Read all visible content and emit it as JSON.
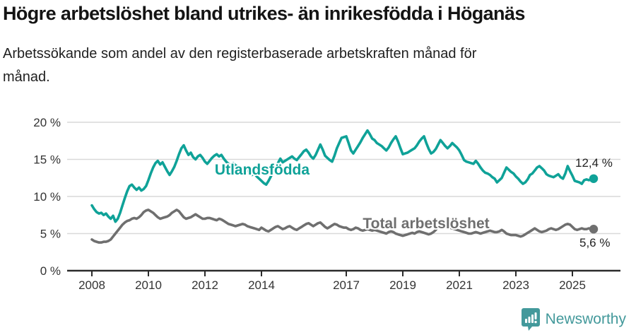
{
  "header": {
    "title": "Högre arbetslöshet bland utrikes- än inrikesfödda i Höganäs",
    "subtitle_line1": "Arbetssökande som andel av den registerbaserade arbetskraften månad för",
    "subtitle_line2": "månad."
  },
  "chart_data": {
    "type": "line",
    "title": "Högre arbetslöshet bland utrikes- än inrikesfödda i Höganäs",
    "subtitle": "Arbetssökande som andel av den registerbaserade arbetskraften månad för månad.",
    "x_unit": "month",
    "x_range": {
      "start": "2008-01",
      "end": "2025-10"
    },
    "grid": true,
    "legend_position": "inline-labels",
    "y_axis": {
      "tick_labels": [
        "0 %",
        "5 %",
        "10 %",
        "15 %",
        "20 %"
      ],
      "tick_values": [
        0,
        5,
        10,
        15,
        20
      ],
      "ylim": [
        0,
        20
      ]
    },
    "x_axis": {
      "tick_labels": [
        "2008",
        "2010",
        "2012",
        "2014",
        "2017",
        "2019",
        "2021",
        "2023",
        "2025"
      ],
      "tick_values": [
        2008,
        2010,
        2012,
        2014,
        2017,
        2019,
        2021,
        2023,
        2025
      ]
    },
    "series": [
      {
        "name": "Utlandsfödda",
        "color": "#0fa298",
        "end_value_label": "12,4 %",
        "values": [
          8.8,
          8.3,
          7.9,
          7.7,
          7.8,
          7.5,
          7.7,
          7.3,
          7.0,
          7.4,
          6.6,
          7.0,
          7.8,
          8.8,
          9.8,
          10.7,
          11.4,
          11.6,
          11.2,
          10.9,
          11.2,
          10.8,
          11.0,
          11.4,
          12.2,
          13.1,
          13.9,
          14.5,
          14.8,
          14.3,
          14.6,
          14.0,
          13.4,
          12.9,
          13.4,
          14.0,
          14.8,
          15.7,
          16.5,
          16.9,
          16.2,
          15.6,
          15.9,
          15.3,
          15.0,
          15.4,
          15.6,
          15.2,
          14.7,
          14.4,
          14.8,
          15.2,
          15.5,
          15.7,
          15.4,
          15.6,
          15.1,
          14.7,
          14.4,
          14.2,
          14.5,
          14.2,
          14.0,
          13.8,
          13.5,
          13.3,
          13.7,
          13.1,
          12.9,
          13.1,
          12.7,
          12.4,
          12.1,
          11.8,
          11.6,
          12.1,
          12.7,
          13.3,
          13.9,
          14.5,
          15.1,
          14.6,
          14.8,
          15.0,
          15.2,
          15.4,
          15.1,
          14.9,
          15.3,
          15.7,
          16.1,
          16.3,
          15.9,
          15.4,
          15.1,
          15.6,
          16.3,
          17.0,
          16.3,
          15.5,
          15.2,
          14.9,
          14.7,
          15.5,
          16.5,
          17.2,
          17.9,
          18.0,
          18.1,
          17.2,
          16.2,
          15.8,
          16.3,
          16.8,
          17.3,
          17.9,
          18.4,
          18.9,
          18.4,
          17.8,
          17.6,
          17.2,
          17.0,
          16.8,
          16.5,
          16.2,
          16.6,
          17.2,
          17.7,
          18.1,
          17.4,
          16.5,
          15.7,
          15.8,
          15.9,
          16.1,
          16.3,
          16.5,
          16.9,
          17.4,
          17.8,
          18.1,
          17.2,
          16.4,
          15.8,
          16.0,
          16.4,
          17.0,
          17.6,
          17.2,
          16.8,
          16.5,
          16.8,
          17.2,
          16.9,
          16.6,
          16.2,
          15.6,
          14.9,
          14.7,
          14.6,
          14.5,
          14.4,
          14.8,
          14.4,
          13.9,
          13.5,
          13.2,
          13.1,
          12.9,
          12.6,
          12.4,
          11.9,
          12.2,
          12.5,
          13.2,
          13.9,
          13.6,
          13.3,
          13.1,
          12.7,
          12.4,
          12.0,
          11.7,
          11.9,
          12.3,
          12.9,
          13.1,
          13.5,
          13.9,
          14.1,
          13.8,
          13.5,
          13.0,
          12.8,
          12.7,
          12.6,
          12.8,
          13.0,
          12.6,
          12.4,
          13.1,
          14.1,
          13.4,
          12.8,
          12.1,
          12.0,
          11.9,
          11.7,
          12.2,
          12.3,
          12.2,
          12.3,
          12.4
        ]
      },
      {
        "name": "Total arbetslöshet",
        "color": "#6f6f6f",
        "end_value_label": "5,6 %",
        "values": [
          4.2,
          4.0,
          3.9,
          3.8,
          3.8,
          3.9,
          3.9,
          4.0,
          4.2,
          4.6,
          5.0,
          5.4,
          5.8,
          6.2,
          6.5,
          6.7,
          6.8,
          7.0,
          7.1,
          7.0,
          7.2,
          7.5,
          7.9,
          8.1,
          8.2,
          8.0,
          7.8,
          7.5,
          7.2,
          7.0,
          7.1,
          7.2,
          7.3,
          7.5,
          7.8,
          8.0,
          8.2,
          8.0,
          7.6,
          7.2,
          7.0,
          7.1,
          7.2,
          7.4,
          7.6,
          7.4,
          7.2,
          7.0,
          7.0,
          7.1,
          7.1,
          7.0,
          6.9,
          6.8,
          7.0,
          6.9,
          6.7,
          6.5,
          6.3,
          6.2,
          6.1,
          6.0,
          6.1,
          6.2,
          6.3,
          6.2,
          6.0,
          5.9,
          5.8,
          5.7,
          5.6,
          5.5,
          5.8,
          5.6,
          5.4,
          5.3,
          5.5,
          5.7,
          5.9,
          6.0,
          5.8,
          5.6,
          5.7,
          5.9,
          6.0,
          5.8,
          5.6,
          5.5,
          5.7,
          5.9,
          6.1,
          6.3,
          6.4,
          6.2,
          6.0,
          6.2,
          6.4,
          6.5,
          6.2,
          5.9,
          5.7,
          5.9,
          6.1,
          6.3,
          6.2,
          6.0,
          5.9,
          5.8,
          5.8,
          5.6,
          5.5,
          5.6,
          5.8,
          5.7,
          5.5,
          5.4,
          5.5,
          5.6,
          5.5,
          5.4,
          5.5,
          5.4,
          5.3,
          5.2,
          5.1,
          5.0,
          5.2,
          5.3,
          5.2,
          5.0,
          4.9,
          4.8,
          4.7,
          4.8,
          4.9,
          5.0,
          5.1,
          5.0,
          5.2,
          5.3,
          5.2,
          5.1,
          5.0,
          4.9,
          5.0,
          5.2,
          5.5,
          6.0,
          6.3,
          6.2,
          6.0,
          5.9,
          5.8,
          5.7,
          5.6,
          5.5,
          5.4,
          5.3,
          5.2,
          5.1,
          5.0,
          5.0,
          5.1,
          5.2,
          5.1,
          5.0,
          5.1,
          5.2,
          5.3,
          5.4,
          5.3,
          5.2,
          5.2,
          5.3,
          5.5,
          5.3,
          5.0,
          4.9,
          4.8,
          4.8,
          4.8,
          4.7,
          4.6,
          4.7,
          4.9,
          5.1,
          5.3,
          5.5,
          5.7,
          5.5,
          5.3,
          5.2,
          5.3,
          5.4,
          5.6,
          5.7,
          5.6,
          5.5,
          5.6,
          5.8,
          6.0,
          6.2,
          6.3,
          6.2,
          5.9,
          5.6,
          5.5,
          5.6,
          5.7,
          5.6,
          5.6,
          5.7,
          5.6,
          5.6
        ]
      }
    ],
    "colors": {
      "grid": "#d9d9d9",
      "axis": "#2b2b2b",
      "tick_text": "#333333"
    }
  },
  "footer": {
    "brand": "Newsworthy",
    "brand_color": "#43999b",
    "logo_icon": "bar-chart-speech-bubble-icon"
  }
}
